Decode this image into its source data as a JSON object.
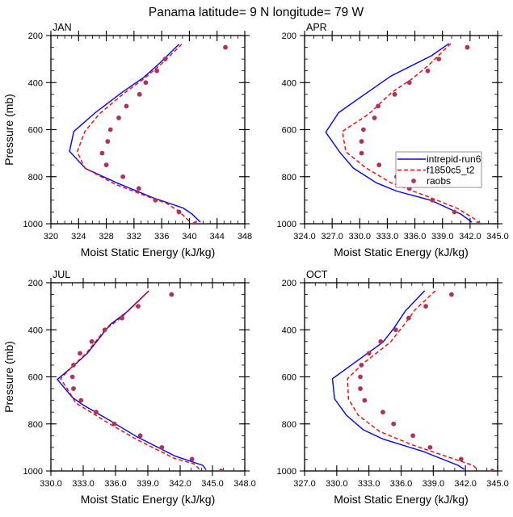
{
  "title": "Panama  latitude= 9 N longitude= 79 W",
  "chart_data": [
    {
      "type": "line",
      "title": "JAN",
      "xlabel": "Moist Static Energy (kJ/kg)",
      "ylabel": "Pressure (mb)",
      "xlim": [
        320,
        348
      ],
      "ylim": [
        1000,
        200
      ],
      "y_reversed": true,
      "xticks": [
        320,
        324,
        328,
        332,
        336,
        340,
        344,
        348
      ],
      "xtick_labels": [
        "320",
        "324",
        "328",
        "332",
        "336",
        "340",
        "344",
        "348"
      ],
      "x_minor_step": 1,
      "yticks": [
        200,
        400,
        600,
        800,
        1000
      ],
      "ytick_labels": [
        "200",
        "400",
        "600",
        "800",
        "1000"
      ],
      "y_minor_step": 50,
      "show_ylabel": true,
      "legend": false,
      "series": [
        {
          "name": "intrepid-run6",
          "style": "solid",
          "color": "#0000ff",
          "points": [
            [
              338.5,
              237
            ],
            [
              335.8,
              315
            ],
            [
              333.4,
              378
            ],
            [
              330.3,
              441
            ],
            [
              326.4,
              528
            ],
            [
              323.3,
              608
            ],
            [
              322.7,
              692
            ],
            [
              325.0,
              765
            ],
            [
              329.5,
              826
            ],
            [
              334.8,
              890
            ],
            [
              339.1,
              933
            ],
            [
              340.4,
              959
            ],
            [
              341.6,
              993
            ]
          ]
        },
        {
          "name": "f1850c5_t2",
          "style": "dashed",
          "color": "#ff0000",
          "points": [
            [
              338.9,
              237
            ],
            [
              336.0,
              320
            ],
            [
              333.4,
              384
            ],
            [
              330.5,
              447
            ],
            [
              327.0,
              533
            ],
            [
              324.9,
              608
            ],
            [
              323.8,
              694
            ],
            [
              324.9,
              763
            ],
            [
              329.3,
              832
            ],
            [
              333.4,
              878
            ],
            [
              336.7,
              913
            ],
            [
              338.5,
              947
            ],
            [
              340.2,
              995
            ]
          ]
        },
        {
          "name": "raobs",
          "style": "markers",
          "color": "#b03060",
          "points": [
            [
              345.2,
              250
            ],
            [
              336.5,
              300
            ],
            [
              335.3,
              350
            ],
            [
              333.7,
              400
            ],
            [
              332.8,
              450
            ],
            [
              330.9,
              500
            ],
            [
              329.8,
              550
            ],
            [
              328.6,
              600
            ],
            [
              328.2,
              650
            ],
            [
              327.4,
              700
            ],
            [
              328.0,
              750
            ],
            [
              330.4,
              800
            ],
            [
              332.7,
              850
            ],
            [
              335.1,
              900
            ],
            [
              338.5,
              950
            ],
            [
              340.8,
              1000
            ]
          ]
        }
      ]
    },
    {
      "type": "line",
      "title": "APR",
      "xlabel": "Moist Static Energy (kJ/kg)",
      "ylabel": "",
      "xlim": [
        324,
        345
      ],
      "ylim": [
        1000,
        200
      ],
      "y_reversed": true,
      "xticks": [
        324,
        327,
        330,
        333,
        336,
        339,
        342,
        345
      ],
      "xtick_labels": [
        "324.0",
        "327.0",
        "330.0",
        "333.0",
        "336.0",
        "339.0",
        "342.0",
        "345.0"
      ],
      "x_minor_step": 1,
      "yticks": [
        200,
        400,
        600,
        800,
        1000
      ],
      "ytick_labels": [
        "200",
        "400",
        "600",
        "800",
        "1000"
      ],
      "y_minor_step": 50,
      "show_ylabel": false,
      "legend": true,
      "legend_position": "center-right",
      "series": [
        {
          "name": "intrepid-run6",
          "style": "solid",
          "color": "#0000ff",
          "points": [
            [
              339.7,
              234
            ],
            [
              337.8,
              286
            ],
            [
              333.4,
              372
            ],
            [
              330.2,
              459
            ],
            [
              327.7,
              528
            ],
            [
              326.3,
              611
            ],
            [
              327.8,
              694
            ],
            [
              329.3,
              763
            ],
            [
              331.8,
              826
            ],
            [
              334.0,
              861
            ],
            [
              337.8,
              901
            ],
            [
              341.0,
              959
            ],
            [
              342.2,
              993
            ]
          ]
        },
        {
          "name": "f1850c5_t2",
          "style": "dashed",
          "color": "#ff0000",
          "points": [
            [
              339.9,
              234
            ],
            [
              337.5,
              326
            ],
            [
              335.7,
              384
            ],
            [
              333.5,
              441
            ],
            [
              331.0,
              533
            ],
            [
              328.1,
              608
            ],
            [
              328.5,
              694
            ],
            [
              330.7,
              763
            ],
            [
              333.4,
              826
            ],
            [
              335.4,
              855
            ],
            [
              337.8,
              890
            ],
            [
              340.7,
              936
            ],
            [
              342.6,
              982
            ],
            [
              342.8,
              993
            ]
          ]
        },
        {
          "name": "raobs",
          "style": "markers",
          "color": "#b03060",
          "points": [
            [
              341.7,
              250
            ],
            [
              338.6,
              300
            ],
            [
              337.4,
              350
            ],
            [
              335.4,
              400
            ],
            [
              333.8,
              450
            ],
            [
              332.0,
              500
            ],
            [
              331.6,
              550
            ],
            [
              330.4,
              600
            ],
            [
              330.2,
              650
            ],
            [
              330.2,
              700
            ],
            [
              332.1,
              750
            ],
            [
              334.0,
              800
            ],
            [
              335.4,
              850
            ],
            [
              337.9,
              900
            ],
            [
              340.3,
              950
            ],
            [
              342.9,
              1000
            ]
          ]
        }
      ]
    },
    {
      "type": "line",
      "title": "JUL",
      "xlabel": "Moist Static Energy (kJ/kg)",
      "ylabel": "Pressure (mb)",
      "xlim": [
        330,
        348
      ],
      "ylim": [
        1000,
        200
      ],
      "y_reversed": true,
      "xticks": [
        330,
        333,
        336,
        339,
        342,
        345,
        348
      ],
      "xtick_labels": [
        "330.0",
        "333.0",
        "336.0",
        "339.0",
        "342.0",
        "345.0",
        "348.0"
      ],
      "x_minor_step": 1,
      "yticks": [
        200,
        400,
        600,
        800,
        1000
      ],
      "ytick_labels": [
        "200",
        "400",
        "600",
        "800",
        "1000"
      ],
      "y_minor_step": 50,
      "show_ylabel": true,
      "legend": false,
      "series": [
        {
          "name": "intrepid-run6",
          "style": "solid",
          "color": "#0000ff",
          "points": [
            [
              339.1,
              234
            ],
            [
              338.3,
              269
            ],
            [
              337.0,
              326
            ],
            [
              335.5,
              378
            ],
            [
              333.4,
              499
            ],
            [
              332.3,
              545
            ],
            [
              330.6,
              611
            ],
            [
              332.0,
              688
            ],
            [
              332.9,
              717
            ],
            [
              335.5,
              786
            ],
            [
              338.0,
              855
            ],
            [
              341.5,
              936
            ],
            [
              344.1,
              976
            ],
            [
              344.4,
              995
            ]
          ]
        },
        {
          "name": "f1850c5_t2",
          "style": "dashed",
          "color": "#ff0000",
          "points": [
            [
              339.1,
              234
            ],
            [
              338.1,
              280
            ],
            [
              336.5,
              349
            ],
            [
              335.0,
              401
            ],
            [
              333.3,
              499
            ],
            [
              332.1,
              551
            ],
            [
              330.9,
              608
            ],
            [
              331.8,
              671
            ],
            [
              332.3,
              711
            ],
            [
              335.4,
              798
            ],
            [
              338.0,
              867
            ],
            [
              341.5,
              947
            ],
            [
              343.3,
              970
            ],
            [
              343.8,
              993
            ]
          ]
        },
        {
          "name": "raobs",
          "style": "markers",
          "color": "#b03060",
          "points": [
            [
              341.2,
              250
            ],
            [
              338.1,
              300
            ],
            [
              336.6,
              350
            ],
            [
              335.0,
              400
            ],
            [
              333.8,
              450
            ],
            [
              332.7,
              500
            ],
            [
              332.1,
              550
            ],
            [
              332.0,
              600
            ],
            [
              332.1,
              650
            ],
            [
              332.8,
              700
            ],
            [
              334.2,
              750
            ],
            [
              335.9,
              800
            ],
            [
              338.3,
              850
            ],
            [
              340.3,
              900
            ],
            [
              343.1,
              950
            ],
            [
              345.8,
              1000
            ]
          ]
        }
      ]
    },
    {
      "type": "line",
      "title": "OCT",
      "xlabel": "Moist Static Energy (kJ/kg)",
      "ylabel": "",
      "xlim": [
        327,
        345
      ],
      "ylim": [
        1000,
        200
      ],
      "y_reversed": true,
      "xticks": [
        327,
        330,
        333,
        336,
        339,
        342,
        345
      ],
      "xtick_labels": [
        "327.0",
        "330.0",
        "333.0",
        "336.0",
        "339.0",
        "342.0",
        "345.0"
      ],
      "x_minor_step": 1,
      "yticks": [
        200,
        400,
        600,
        800,
        1000
      ],
      "ytick_labels": [
        "200",
        "400",
        "600",
        "800",
        "1000"
      ],
      "y_minor_step": 50,
      "show_ylabel": false,
      "legend": false,
      "series": [
        {
          "name": "intrepid-run6",
          "style": "solid",
          "color": "#0000ff",
          "points": [
            [
              338.2,
              234
            ],
            [
              336.4,
              320
            ],
            [
              335.3,
              395
            ],
            [
              334.3,
              453
            ],
            [
              329.6,
              608
            ],
            [
              329.8,
              694
            ],
            [
              330.9,
              763
            ],
            [
              332.5,
              826
            ],
            [
              334.3,
              864
            ],
            [
              338.1,
              918
            ],
            [
              341.3,
              976
            ],
            [
              341.9,
              993
            ]
          ]
        },
        {
          "name": "f1850c5_t2",
          "style": "dashed",
          "color": "#ff0000",
          "points": [
            [
              339.2,
              234
            ],
            [
              337.3,
              315
            ],
            [
              336.4,
              372
            ],
            [
              335.0,
              453
            ],
            [
              332.4,
              545
            ],
            [
              331.0,
              608
            ],
            [
              331.1,
              694
            ],
            [
              332.0,
              763
            ],
            [
              334.0,
              832
            ],
            [
              337.1,
              890
            ],
            [
              340.1,
              936
            ],
            [
              342.7,
              976
            ],
            [
              343.1,
              993
            ]
          ]
        },
        {
          "name": "raobs",
          "style": "markers",
          "color": "#b03060",
          "points": [
            [
              340.7,
              250
            ],
            [
              338.3,
              300
            ],
            [
              336.7,
              350
            ],
            [
              335.5,
              400
            ],
            [
              334.1,
              450
            ],
            [
              333.0,
              500
            ],
            [
              332.3,
              550
            ],
            [
              332.2,
              600
            ],
            [
              332.2,
              650
            ],
            [
              332.6,
              700
            ],
            [
              334.3,
              750
            ],
            [
              335.3,
              800
            ],
            [
              337.1,
              850
            ],
            [
              338.7,
              900
            ],
            [
              341.6,
              950
            ],
            [
              344.5,
              1000
            ]
          ]
        }
      ]
    }
  ]
}
